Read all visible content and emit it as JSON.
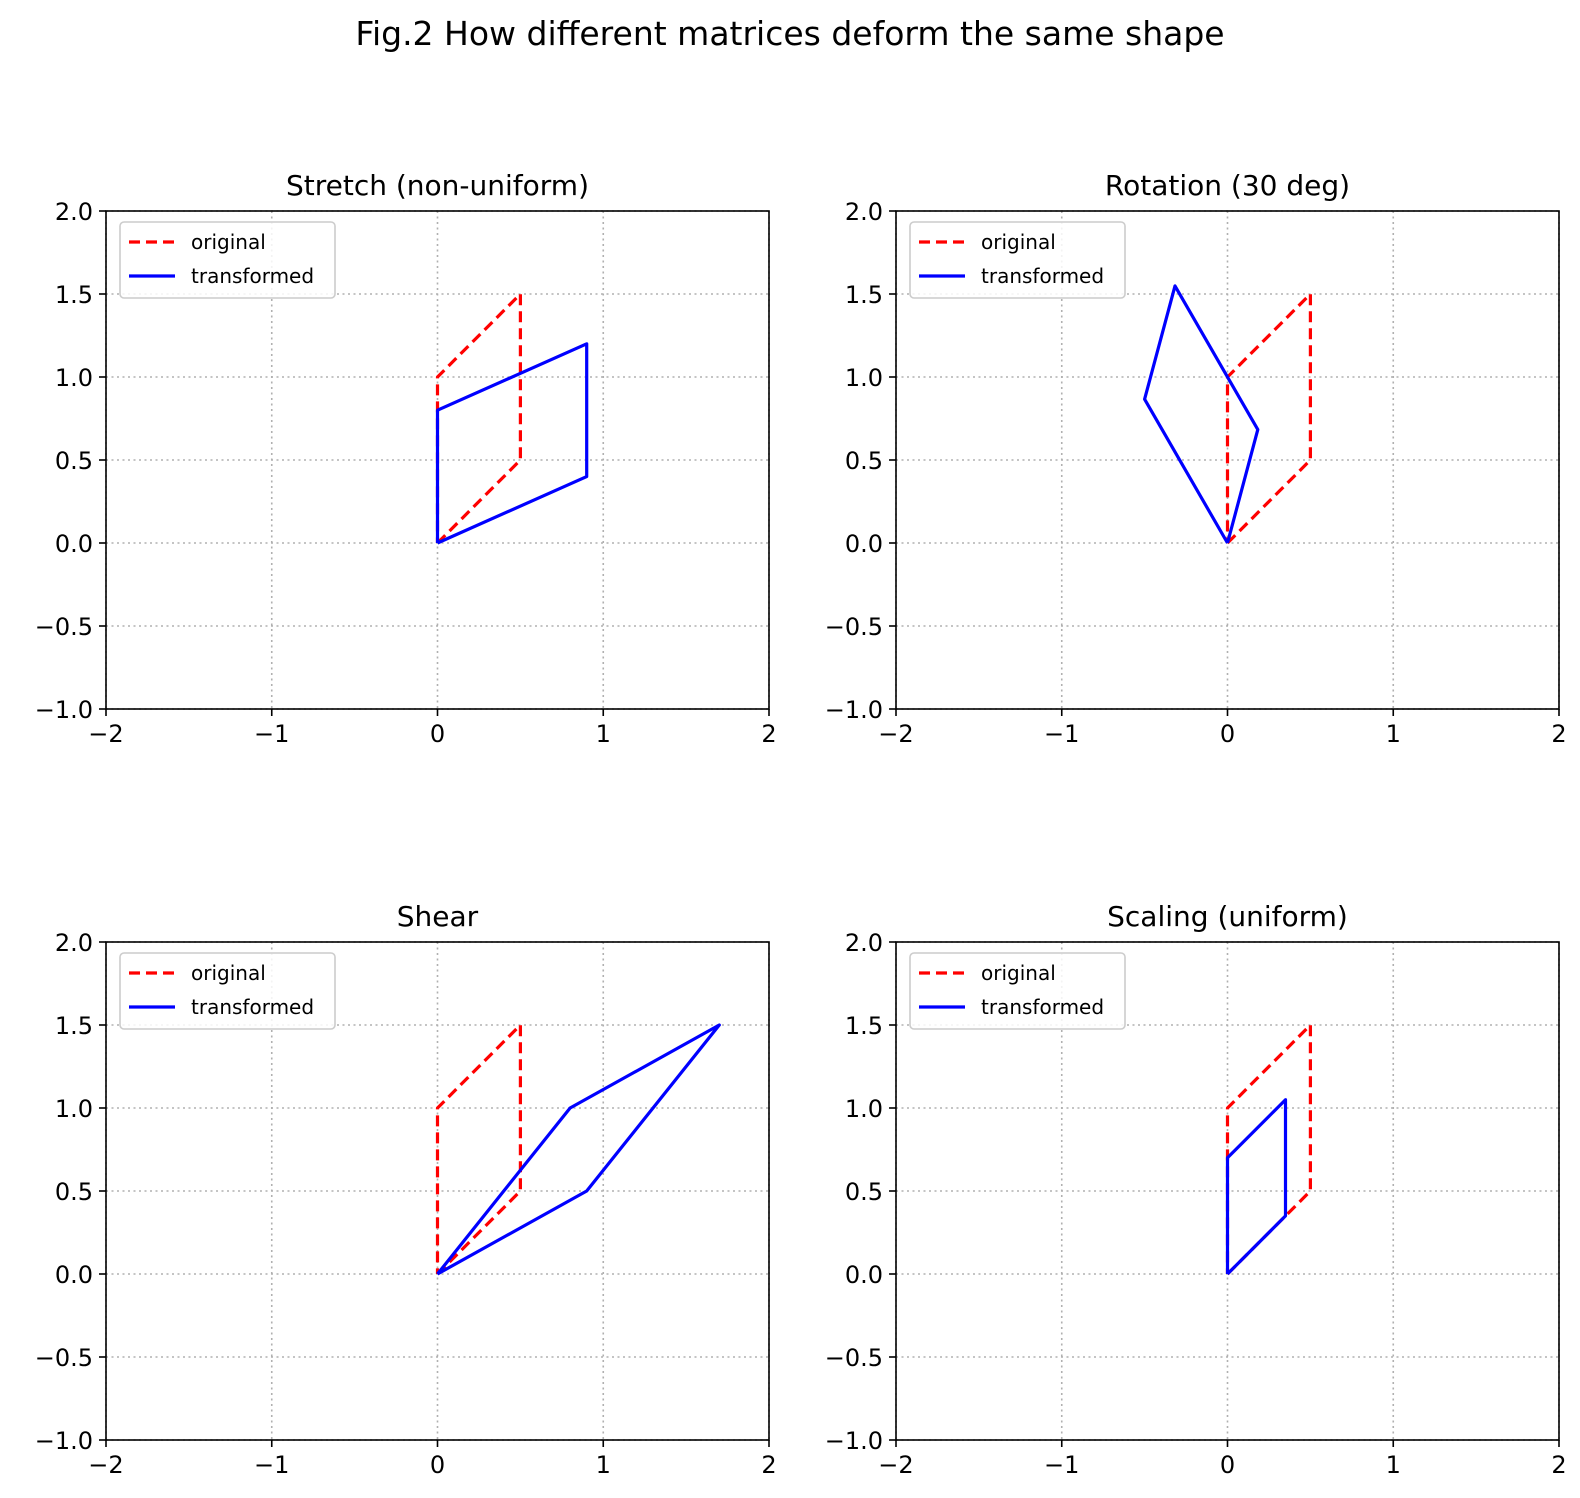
{
  "figure": {
    "title": "Fig.2 How different matrices deform the same shape"
  },
  "colors": {
    "original": "#ff0000",
    "transformed": "#0000ff",
    "grid": "#b0b0b0",
    "axes": "#000000"
  },
  "chart_data": [
    {
      "type": "line",
      "title": "Stretch (non-uniform)",
      "xlim": [
        -2,
        2
      ],
      "ylim": [
        -1,
        2
      ],
      "xticks": [
        "−2",
        "−1",
        "0",
        "1",
        "2"
      ],
      "yticks": [
        "−1.0",
        "−0.5",
        "0.0",
        "0.5",
        "1.0",
        "1.5",
        "2.0"
      ],
      "grid": true,
      "grid_style": "dotted",
      "legend": "upper-left",
      "series": [
        {
          "name": "original",
          "style": "dashed",
          "color": "#ff0000",
          "points": [
            [
              0,
              0
            ],
            [
              0.5,
              0.5
            ],
            [
              0.5,
              1.5
            ],
            [
              0,
              1
            ],
            [
              0,
              0
            ]
          ]
        },
        {
          "name": "transformed",
          "style": "solid",
          "color": "#0000ff",
          "points": [
            [
              0,
              0
            ],
            [
              0.9,
              0.4
            ],
            [
              0.9,
              1.2
            ],
            [
              0,
              0.8
            ],
            [
              0,
              0
            ]
          ]
        }
      ]
    },
    {
      "type": "line",
      "title": "Rotation (30 deg)",
      "xlim": [
        -2,
        2
      ],
      "ylim": [
        -1,
        2
      ],
      "xticks": [
        "−2",
        "−1",
        "0",
        "1",
        "2"
      ],
      "yticks": [
        "−1.0",
        "−0.5",
        "0.0",
        "0.5",
        "1.0",
        "1.5",
        "2.0"
      ],
      "grid": true,
      "grid_style": "dotted",
      "legend": "upper-left",
      "series": [
        {
          "name": "original",
          "style": "dashed",
          "color": "#ff0000",
          "points": [
            [
              0,
              0
            ],
            [
              0.5,
              0.5
            ],
            [
              0.5,
              1.5
            ],
            [
              0,
              1
            ],
            [
              0,
              0
            ]
          ]
        },
        {
          "name": "transformed",
          "style": "solid",
          "color": "#0000ff",
          "points": [
            [
              0,
              0
            ],
            [
              0.183,
              0.683
            ],
            [
              -0.317,
              1.549
            ],
            [
              -0.5,
              0.866
            ],
            [
              0,
              0
            ]
          ]
        }
      ]
    },
    {
      "type": "line",
      "title": "Shear",
      "xlim": [
        -2,
        2
      ],
      "ylim": [
        -1,
        2
      ],
      "xticks": [
        "−2",
        "−1",
        "0",
        "1",
        "2"
      ],
      "yticks": [
        "−1.0",
        "−0.5",
        "0.0",
        "0.5",
        "1.0",
        "1.5",
        "2.0"
      ],
      "grid": true,
      "grid_style": "dotted",
      "legend": "upper-left",
      "series": [
        {
          "name": "original",
          "style": "dashed",
          "color": "#ff0000",
          "points": [
            [
              0,
              0
            ],
            [
              0.5,
              0.5
            ],
            [
              0.5,
              1.5
            ],
            [
              0,
              1
            ],
            [
              0,
              0
            ]
          ]
        },
        {
          "name": "transformed",
          "style": "solid",
          "color": "#0000ff",
          "points": [
            [
              0,
              0
            ],
            [
              0.9,
              0.5
            ],
            [
              1.7,
              1.5
            ],
            [
              0.8,
              1.0
            ],
            [
              0,
              0
            ]
          ]
        }
      ]
    },
    {
      "type": "line",
      "title": "Scaling (uniform)",
      "xlim": [
        -2,
        2
      ],
      "ylim": [
        -1,
        2
      ],
      "xticks": [
        "−2",
        "−1",
        "0",
        "1",
        "2"
      ],
      "yticks": [
        "−1.0",
        "−0.5",
        "0.0",
        "0.5",
        "1.0",
        "1.5",
        "2.0"
      ],
      "grid": true,
      "grid_style": "dotted",
      "legend": "upper-left",
      "series": [
        {
          "name": "original",
          "style": "dashed",
          "color": "#ff0000",
          "points": [
            [
              0,
              0
            ],
            [
              0.5,
              0.5
            ],
            [
              0.5,
              1.5
            ],
            [
              0,
              1
            ],
            [
              0,
              0
            ]
          ]
        },
        {
          "name": "transformed",
          "style": "solid",
          "color": "#0000ff",
          "points": [
            [
              0,
              0
            ],
            [
              0.35,
              0.35
            ],
            [
              0.35,
              1.05
            ],
            [
              0,
              0.7
            ],
            [
              0,
              0
            ]
          ]
        }
      ]
    }
  ]
}
